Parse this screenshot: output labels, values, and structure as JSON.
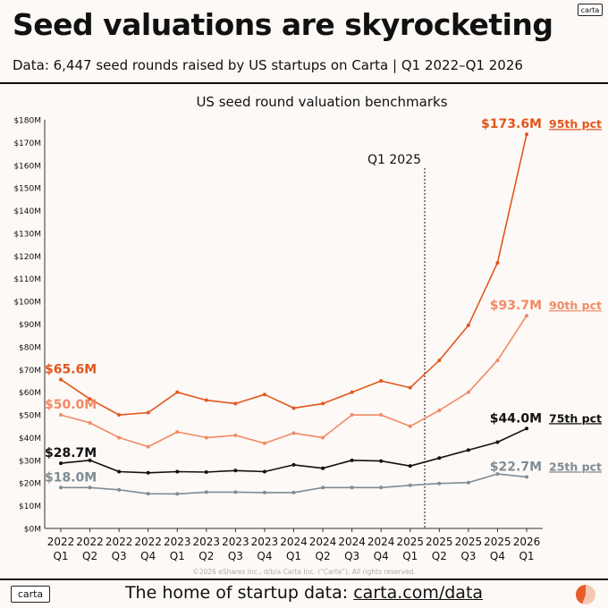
{
  "brand": {
    "logo_text": "carta"
  },
  "header": {
    "title": "Seed valuations are skyrocketing",
    "subtitle": "Data: 6,447 seed rounds raised by US startups on Carta | Q1 2022–Q1 2026"
  },
  "footer": {
    "tagline_prefix": "The home of startup data: ",
    "tagline_link": "carta.com/data"
  },
  "chart_data": {
    "type": "line",
    "title": "US seed round valuation benchmarks",
    "xlabel": "",
    "ylabel": "",
    "ylim": [
      0,
      180
    ],
    "yticks": [
      "$0M",
      "$10M",
      "$20M",
      "$30M",
      "$40M",
      "$50M",
      "$60M",
      "$70M",
      "$80M",
      "$90M",
      "$100M",
      "$110M",
      "$120M",
      "$130M",
      "$140M",
      "$150M",
      "$160M",
      "$170M",
      "$180M"
    ],
    "categories_year": [
      "2022",
      "2022",
      "2022",
      "2022",
      "2023",
      "2023",
      "2023",
      "2023",
      "2024",
      "2024",
      "2024",
      "2024",
      "2025",
      "2025",
      "2025",
      "2025",
      "2026"
    ],
    "categories_quarter": [
      "Q1",
      "Q2",
      "Q3",
      "Q4",
      "Q1",
      "Q2",
      "Q3",
      "Q4",
      "Q1",
      "Q2",
      "Q3",
      "Q4",
      "Q1",
      "Q2",
      "Q3",
      "Q4",
      "Q1"
    ],
    "annotation": {
      "label": "Q1 2025",
      "index": 12.5
    },
    "series": [
      {
        "name": "95th pct",
        "color": "#e2571d",
        "values": [
          65.6,
          57,
          50,
          51,
          60,
          56.5,
          55,
          59,
          53,
          55,
          60,
          65,
          62,
          74,
          89.5,
          117,
          173.6
        ],
        "start_label": "$65.6M",
        "end_label": "$173.6M"
      },
      {
        "name": "90th pct",
        "color": "#f18a66",
        "values": [
          50.0,
          46.5,
          40,
          36,
          42.5,
          40,
          41,
          37.5,
          42,
          40,
          50,
          50,
          45,
          52,
          60,
          74,
          93.7
        ],
        "start_label": "$50.0M",
        "end_label": "$93.7M"
      },
      {
        "name": "75th pct",
        "color": "#111111",
        "values": [
          28.7,
          30,
          25,
          24.5,
          25,
          24.8,
          25.5,
          25,
          28,
          26.5,
          30,
          29.7,
          27.5,
          31,
          34.5,
          38,
          44.0
        ],
        "start_label": "$28.7M",
        "end_label": "$44.0M"
      },
      {
        "name": "25th pct",
        "color": "#7f8c93",
        "values": [
          18.0,
          18,
          17,
          15.3,
          15.2,
          16,
          16,
          15.8,
          15.8,
          18,
          18,
          18,
          19,
          19.8,
          20.2,
          24,
          22.7
        ],
        "start_label": "$18.0M",
        "end_label": "$22.7M"
      }
    ],
    "copyright": "©2026 eShares Inc., d/b/a Carta Inc. (“Carta”). All rights reserved."
  }
}
